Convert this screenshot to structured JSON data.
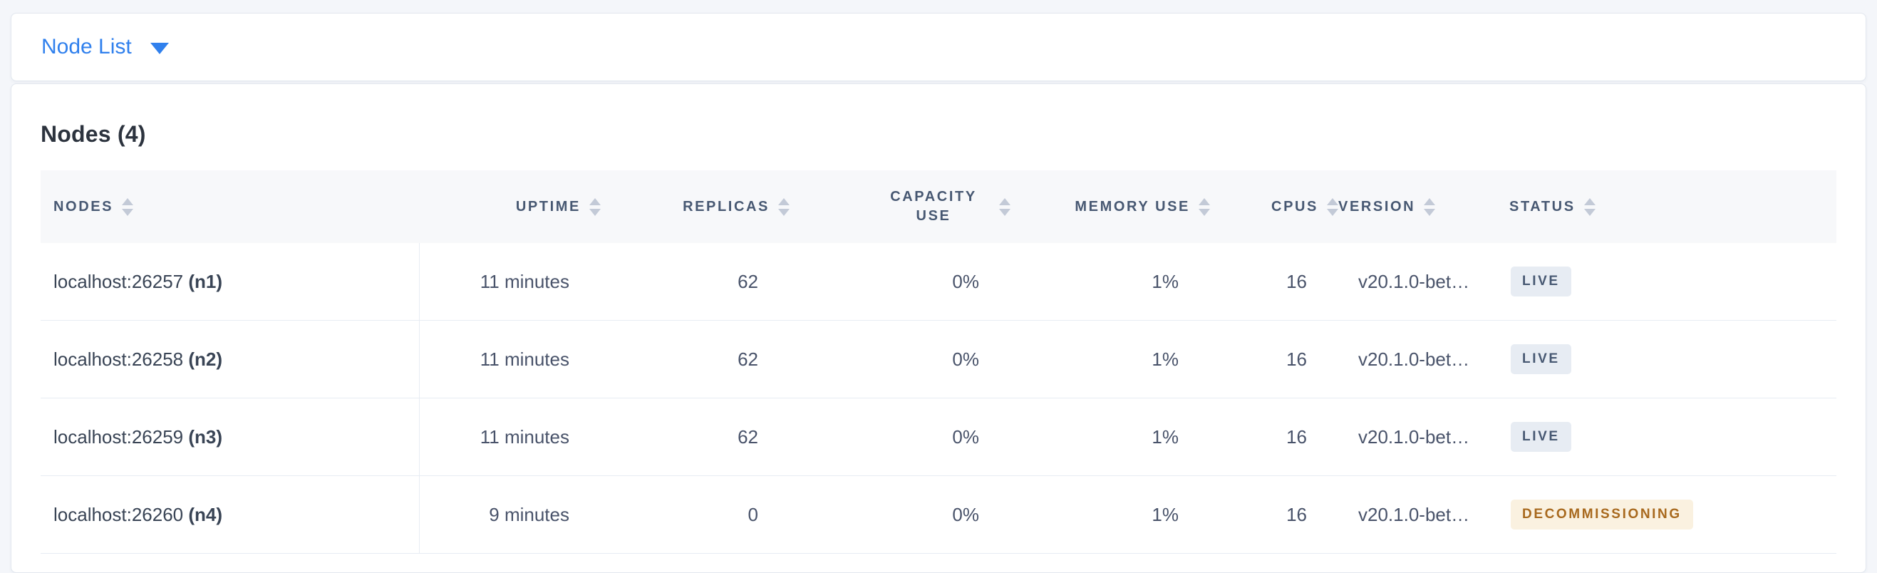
{
  "selector": {
    "label": "Node List"
  },
  "main": {
    "title": "Nodes (4)",
    "table": {
      "columns": [
        {
          "key": "nodes",
          "label": "NODES",
          "align": "left",
          "wrap": false
        },
        {
          "key": "uptime",
          "label": "UPTIME",
          "align": "right",
          "wrap": false
        },
        {
          "key": "replicas",
          "label": "REPLICAS",
          "align": "right",
          "wrap": false
        },
        {
          "key": "capacity",
          "label": "CAPACITY USE",
          "align": "right",
          "wrap": true
        },
        {
          "key": "memory",
          "label": "MEMORY USE",
          "align": "right",
          "wrap": false
        },
        {
          "key": "cpus",
          "label": "CPUS",
          "align": "right",
          "wrap": false
        },
        {
          "key": "version",
          "label": "VERSION",
          "align": "left",
          "wrap": false
        },
        {
          "key": "status",
          "label": "STATUS",
          "align": "left",
          "wrap": false
        }
      ],
      "rows": [
        {
          "address": "localhost:26257",
          "node_id": "(n1)",
          "uptime": "11 minutes",
          "replicas": "62",
          "capacity": "0%",
          "memory": "1%",
          "cpus": "16",
          "version": "v20.1.0-bet…",
          "status": "LIVE",
          "status_type": "live"
        },
        {
          "address": "localhost:26258",
          "node_id": "(n2)",
          "uptime": "11 minutes",
          "replicas": "62",
          "capacity": "0%",
          "memory": "1%",
          "cpus": "16",
          "version": "v20.1.0-bet…",
          "status": "LIVE",
          "status_type": "live"
        },
        {
          "address": "localhost:26259",
          "node_id": "(n3)",
          "uptime": "11 minutes",
          "replicas": "62",
          "capacity": "0%",
          "memory": "1%",
          "cpus": "16",
          "version": "v20.1.0-bet…",
          "status": "LIVE",
          "status_type": "live"
        },
        {
          "address": "localhost:26260",
          "node_id": "(n4)",
          "uptime": "9 minutes",
          "replicas": "0",
          "capacity": "0%",
          "memory": "1%",
          "cpus": "16",
          "version": "v20.1.0-bet…",
          "status": "DECOMMISSIONING",
          "status_type": "decommissioning"
        }
      ]
    }
  },
  "icons": {
    "selector_caret": "caret-down-icon",
    "column_sort": "sort-icon"
  },
  "colors": {
    "page_bg": "#f4f6fa",
    "card_bg": "#ffffff",
    "card_border": "#e2e7ee",
    "accent_blue": "#3080ed",
    "header_bg": "#f7f8fa",
    "header_text": "#475872",
    "body_text": "#394455",
    "row_border": "#e7ecf3",
    "live_badge_bg": "#e7ecf3",
    "live_badge_text": "#475872",
    "decommissioning_badge_bg": "#faf1e0",
    "decommissioning_badge_text": "#a8691e"
  }
}
